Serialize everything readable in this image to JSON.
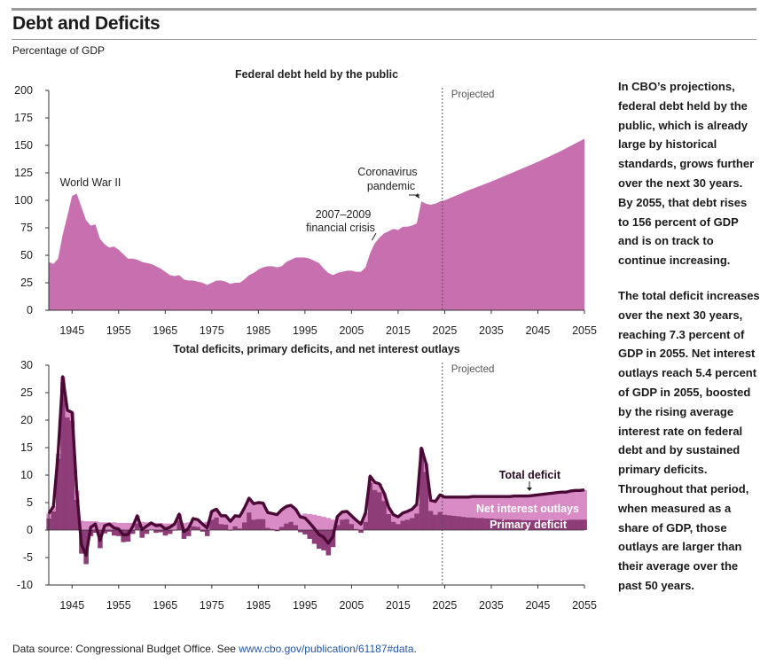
{
  "figure": {
    "title": "Debt and Deficits",
    "subtitle": "Percentage of GDP"
  },
  "side_text": {
    "p1": "In CBO’s projections, federal debt held by the public, which is already large by historical standards, grows further over the next 30 years. By 2055, that debt rises to 156 percent of GDP and is on track to continue increasing.",
    "p2": "The total deficit increases over the next 30 years, reaching 7.3 percent of GDP in 2055. Net interest outlays reach 5.4 percent of GDP in 2055, boosted by the rising average interest rate on federal debt and by sustained primary deficits. Throughout that period, when measured as a share of GDP, those outlays are larger than their average over the past 50 years."
  },
  "footer": {
    "prefix": "Data source: Congressional Budget Office. See ",
    "link": "www.cbo.gov/publication/61187#data",
    "suffix": "."
  },
  "colors": {
    "debt_area": "#c86fb0",
    "net_interest": "#d98bc6",
    "primary_deficit": "#8e3d78",
    "total_deficit_line": "#4a0a35",
    "projected_line": "#555555",
    "axis": "#333333"
  },
  "chart_data": [
    {
      "type": "area",
      "title": "Federal debt held by the public",
      "xlabel": "",
      "ylabel": "",
      "ylim": [
        0,
        200
      ],
      "xlim": [
        1940,
        2055
      ],
      "yticks": [
        0,
        25,
        50,
        75,
        100,
        125,
        150,
        175,
        200
      ],
      "xticks": [
        1945,
        1955,
        1965,
        1975,
        1985,
        1995,
        2005,
        2015,
        2025,
        2035,
        2045,
        2055
      ],
      "projected_start": 2024.5,
      "projected_label": "Projected",
      "annotations": [
        {
          "text": "World War II",
          "year": 1946,
          "value": 106
        },
        {
          "text": "2007–2009 financial crisis",
          "year": 2009,
          "value": 62
        },
        {
          "text": "Coronavirus pandemic",
          "year": 2020,
          "value": 100
        }
      ],
      "series": [
        {
          "x": [
            1940,
            1941,
            1942,
            1943,
            1944,
            1945,
            1946,
            1947,
            1948,
            1949,
            1950,
            1951,
            1952,
            1953,
            1954,
            1955,
            1956,
            1957,
            1958,
            1959,
            1960,
            1961,
            1962,
            1963,
            1964,
            1965,
            1966,
            1967,
            1968,
            1969,
            1970,
            1971,
            1972,
            1973,
            1974,
            1975,
            1976,
            1977,
            1978,
            1979,
            1980,
            1981,
            1982,
            1983,
            1984,
            1985,
            1986,
            1987,
            1988,
            1989,
            1990,
            1991,
            1992,
            1993,
            1994,
            1995,
            1996,
            1997,
            1998,
            1999,
            2000,
            2001,
            2002,
            2003,
            2004,
            2005,
            2006,
            2007,
            2008,
            2009,
            2010,
            2011,
            2012,
            2013,
            2014,
            2015,
            2016,
            2017,
            2018,
            2019,
            2020,
            2021,
            2022,
            2023,
            2024,
            2025,
            2030,
            2035,
            2040,
            2045,
            2050,
            2055
          ],
          "values": [
            44,
            42,
            47,
            69,
            86,
            104,
            106,
            94,
            82,
            77,
            78,
            65,
            60,
            57,
            58,
            55,
            51,
            47,
            47,
            46,
            44,
            43,
            42,
            40,
            38,
            35,
            32,
            31,
            32,
            28,
            27,
            27,
            26,
            25,
            23,
            25,
            27,
            27,
            26,
            24,
            25,
            25,
            28,
            32,
            34,
            37,
            39,
            40,
            40,
            39,
            40,
            44,
            46,
            48,
            48,
            48,
            47,
            45,
            43,
            38,
            34,
            32,
            34,
            35,
            36,
            36,
            35,
            35,
            39,
            52,
            61,
            66,
            70,
            72,
            74,
            73,
            76,
            76,
            77,
            79,
            99,
            97,
            96,
            97,
            99,
            100,
            109,
            117,
            126,
            135,
            145,
            156
          ]
        }
      ]
    },
    {
      "type": "bar",
      "title": "Total deficits, primary deficits, and net interest outlays",
      "xlabel": "",
      "ylabel": "",
      "ylim": [
        -10,
        30
      ],
      "xlim": [
        1940,
        2055
      ],
      "yticks": [
        -10,
        -5,
        0,
        5,
        10,
        15,
        20,
        25,
        30
      ],
      "xticks": [
        1945,
        1955,
        1965,
        1975,
        1985,
        1995,
        2005,
        2015,
        2025,
        2035,
        2045,
        2055
      ],
      "projected_start": 2024.5,
      "projected_label": "Projected",
      "x": [
        1940,
        1941,
        1942,
        1943,
        1944,
        1945,
        1946,
        1947,
        1948,
        1949,
        1950,
        1951,
        1952,
        1953,
        1954,
        1955,
        1956,
        1957,
        1958,
        1959,
        1960,
        1961,
        1962,
        1963,
        1964,
        1965,
        1966,
        1967,
        1968,
        1969,
        1970,
        1971,
        1972,
        1973,
        1974,
        1975,
        1976,
        1977,
        1978,
        1979,
        1980,
        1981,
        1982,
        1983,
        1984,
        1985,
        1986,
        1987,
        1988,
        1989,
        1990,
        1991,
        1992,
        1993,
        1994,
        1995,
        1996,
        1997,
        1998,
        1999,
        2000,
        2001,
        2002,
        2003,
        2004,
        2005,
        2006,
        2007,
        2008,
        2009,
        2010,
        2011,
        2012,
        2013,
        2014,
        2015,
        2016,
        2017,
        2018,
        2019,
        2020,
        2021,
        2022,
        2023,
        2024,
        2025,
        2026,
        2027,
        2028,
        2029,
        2030,
        2031,
        2032,
        2033,
        2034,
        2035,
        2036,
        2037,
        2038,
        2039,
        2040,
        2041,
        2042,
        2043,
        2044,
        2045,
        2046,
        2047,
        2048,
        2049,
        2050,
        2051,
        2052,
        2053,
        2054,
        2055
      ],
      "series": [
        {
          "name": "Net interest outlays",
          "values": [
            0.9,
            0.9,
            0.9,
            1.0,
            1.3,
            1.5,
            1.7,
            1.7,
            1.6,
            1.6,
            1.6,
            1.4,
            1.4,
            1.4,
            1.4,
            1.3,
            1.3,
            1.3,
            1.3,
            1.4,
            1.5,
            1.4,
            1.2,
            1.3,
            1.3,
            1.2,
            1.2,
            1.2,
            1.2,
            1.3,
            1.4,
            1.4,
            1.3,
            1.4,
            1.5,
            1.5,
            1.5,
            1.5,
            1.6,
            1.7,
            1.9,
            2.2,
            2.6,
            2.6,
            2.9,
            3.0,
            2.9,
            2.8,
            2.8,
            3.0,
            3.1,
            3.1,
            3.0,
            2.9,
            2.8,
            3.0,
            2.9,
            2.8,
            2.6,
            2.4,
            2.2,
            1.9,
            1.6,
            1.4,
            1.4,
            1.5,
            1.6,
            1.6,
            1.6,
            1.2,
            1.4,
            1.5,
            1.4,
            1.2,
            1.3,
            1.3,
            1.4,
            1.5,
            1.6,
            1.7,
            1.6,
            1.5,
            1.9,
            2.4,
            3.1,
            3.2,
            3.3,
            3.4,
            3.5,
            3.6,
            3.7,
            3.8,
            3.9,
            3.9,
            4.0,
            4.0,
            4.1,
            4.1,
            4.2,
            4.2,
            4.3,
            4.3,
            4.4,
            4.4,
            4.5,
            4.6,
            4.7,
            4.8,
            4.9,
            5.0,
            5.1,
            5.1,
            5.2,
            5.3,
            5.3,
            5.4
          ]
        },
        {
          "name": "Primary deficit",
          "values": [
            2.1,
            3.4,
            13.0,
            26.9,
            20.5,
            19.9,
            5.5,
            -4.3,
            -6.2,
            -1.1,
            -0.5,
            -3.3,
            -0.6,
            -0.3,
            -1.0,
            -1.1,
            -2.2,
            -2.1,
            -0.7,
            1.2,
            -1.4,
            -0.7,
            0.1,
            -0.5,
            -0.4,
            -1.0,
            -0.7,
            -0.1,
            1.7,
            -1.6,
            -1.1,
            0.7,
            0.6,
            -0.3,
            -1.1,
            1.9,
            2.3,
            1.1,
            1.0,
            -0.1,
            0.7,
            0.3,
            1.4,
            3.2,
            1.9,
            2.0,
            2.0,
            0.4,
            0.2,
            -0.2,
            0.6,
            1.2,
            1.5,
            0.9,
            -0.4,
            -0.8,
            -1.6,
            -2.5,
            -3.4,
            -3.7,
            -4.6,
            -3.1,
            0.9,
            1.9,
            2.0,
            1.1,
            0.2,
            -0.5,
            1.5,
            8.6,
            7.3,
            6.9,
            5.3,
            2.9,
            1.5,
            1.1,
            1.7,
            1.9,
            2.2,
            3.0,
            13.3,
            10.6,
            3.5,
            2.8,
            3.3,
            2.8,
            2.7,
            2.6,
            2.5,
            2.4,
            2.3,
            2.3,
            2.2,
            2.2,
            2.1,
            2.1,
            2.0,
            2.0,
            1.9,
            1.9,
            1.9,
            1.9,
            1.8,
            1.8,
            1.8,
            1.8,
            1.8,
            1.8,
            1.8,
            1.8,
            1.8,
            1.8,
            1.9,
            1.9,
            1.9,
            1.9
          ]
        },
        {
          "name": "Total deficit",
          "values": [
            3.0,
            4.3,
            13.9,
            27.9,
            21.8,
            21.4,
            7.2,
            -2.6,
            -4.6,
            0.5,
            1.1,
            -1.9,
            0.8,
            1.1,
            0.4,
            0.2,
            -0.9,
            -0.8,
            0.6,
            2.6,
            0.1,
            0.7,
            1.3,
            0.8,
            0.9,
            0.2,
            0.5,
            1.1,
            2.9,
            -0.3,
            0.3,
            2.1,
            1.9,
            1.1,
            0.4,
            3.4,
            3.8,
            2.6,
            2.6,
            1.6,
            2.6,
            2.5,
            4.0,
            5.8,
            4.8,
            5.0,
            4.9,
            3.2,
            3.0,
            2.8,
            3.7,
            4.3,
            4.5,
            3.8,
            2.4,
            2.2,
            1.3,
            0.3,
            -0.8,
            -1.3,
            -2.4,
            -1.2,
            2.5,
            3.3,
            3.4,
            2.6,
            1.8,
            1.1,
            3.1,
            9.8,
            8.7,
            8.4,
            6.7,
            4.1,
            2.8,
            2.4,
            3.1,
            3.4,
            3.8,
            4.7,
            14.9,
            12.1,
            5.4,
            5.2,
            6.4,
            6.0,
            6.0,
            6.0,
            6.0,
            6.0,
            6.0,
            6.1,
            6.1,
            6.1,
            6.1,
            6.1,
            6.1,
            6.1,
            6.1,
            6.1,
            6.2,
            6.2,
            6.2,
            6.2,
            6.3,
            6.4,
            6.5,
            6.6,
            6.7,
            6.8,
            6.9,
            6.9,
            7.1,
            7.2,
            7.2,
            7.3
          ]
        }
      ]
    }
  ]
}
